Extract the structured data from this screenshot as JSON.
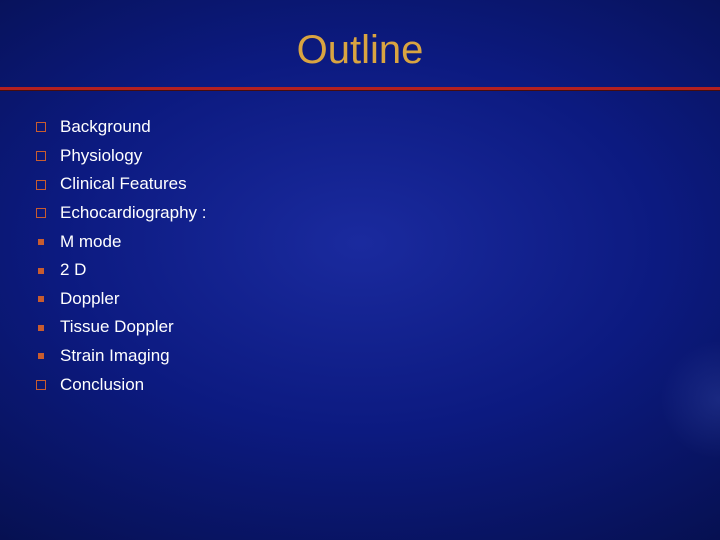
{
  "title": "Outline",
  "title_color": "#d9a441",
  "title_fontsize": 40,
  "rule_color": "#b42020",
  "bullet_box_color": "#c85c2f",
  "bullet_square_color": "#c85c2f",
  "text_color": "#ffffff",
  "text_fontsize": 17,
  "background_gradient": {
    "type": "radial",
    "stops": [
      "#1a2a9e",
      "#0c1a80",
      "#061050",
      "#030830"
    ]
  },
  "items": [
    {
      "bullet": "box",
      "label": "Background"
    },
    {
      "bullet": "box",
      "label": "Physiology"
    },
    {
      "bullet": "box",
      "label": "Clinical Features"
    },
    {
      "bullet": "box",
      "label": "Echocardiography :"
    },
    {
      "bullet": "square",
      "label": "M mode"
    },
    {
      "bullet": "square",
      "label": "2 D"
    },
    {
      "bullet": "square",
      "label": "Doppler"
    },
    {
      "bullet": "square",
      "label": "Tissue Doppler"
    },
    {
      "bullet": "square",
      "label": "Strain Imaging"
    },
    {
      "bullet": "box",
      "label": "Conclusion"
    }
  ]
}
